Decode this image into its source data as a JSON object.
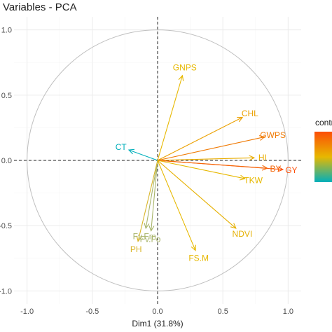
{
  "chart_data": {
    "type": "scatter",
    "title": "Variables - PCA",
    "xlabel": "Dim1 (31.8%)",
    "ylabel": "",
    "xlim": [
      -1.1,
      1.1
    ],
    "ylim": [
      -1.1,
      1.1
    ],
    "x_ticks": [
      "-1.0",
      "-0.5",
      "0.0",
      "0.5",
      "1.0"
    ],
    "y_ticks": [
      "-1.0",
      "-0.5",
      "0.0",
      "0.5",
      "1.0"
    ],
    "grid": true,
    "correlation_circle": true,
    "legend": {
      "title": "contrib",
      "placement": "right"
    },
    "colors": {
      "low": "#00AFBB",
      "mid": "#E7B800",
      "high": "#FC4E07",
      "circle": "#bfbfbf",
      "grid": "#ebebeb"
    },
    "vectors": [
      {
        "label": "GNPS",
        "x": 0.19,
        "y": 0.65,
        "color": "#E7B800"
      },
      {
        "label": "CHL",
        "x": 0.65,
        "y": 0.33,
        "color": "#EBA000"
      },
      {
        "label": "GWPS",
        "x": 0.82,
        "y": 0.18,
        "color": "#F07A04"
      },
      {
        "label": "HI",
        "x": 0.74,
        "y": 0.02,
        "color": "#E9AD00"
      },
      {
        "label": "GY",
        "x": 0.96,
        "y": -0.07,
        "color": "#FC4E07"
      },
      {
        "label": "BY",
        "x": 0.84,
        "y": -0.06,
        "color": "#F56505"
      },
      {
        "label": "TKW",
        "x": 0.67,
        "y": -0.14,
        "color": "#E7B800"
      },
      {
        "label": "NDVI",
        "x": 0.6,
        "y": -0.52,
        "color": "#E6B000"
      },
      {
        "label": "FS.M",
        "x": 0.29,
        "y": -0.69,
        "color": "#E7B800"
      },
      {
        "label": "CT",
        "x": -0.22,
        "y": 0.08,
        "color": "#00AFBB"
      },
      {
        "label": "Fv.Fm",
        "x": -0.09,
        "y": -0.52,
        "color": "#A8B46A"
      },
      {
        "label": "Fv.Fo",
        "x": -0.05,
        "y": -0.54,
        "color": "#A8B46A"
      },
      {
        "label": "PH",
        "x": -0.15,
        "y": -0.62,
        "color": "#D9B62A"
      }
    ]
  }
}
